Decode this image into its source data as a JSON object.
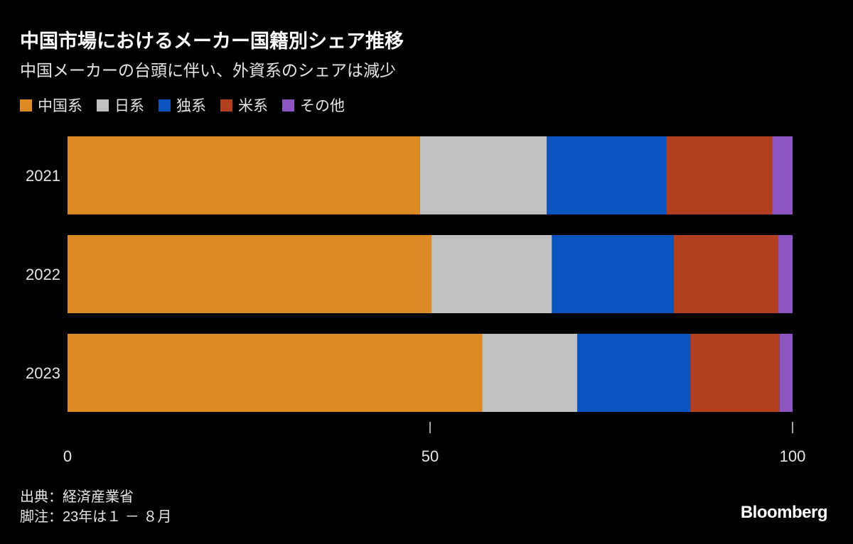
{
  "chart_data": {
    "type": "bar",
    "orientation": "horizontal",
    "stacked": true,
    "title": "中国市場におけるメーカー国籍別シェア推移",
    "subtitle": "中国メーカーの台頭に伴い、外資系のシェアは減少",
    "categories": [
      "2021",
      "2022",
      "2023"
    ],
    "series": [
      {
        "name": "中国系",
        "color": "#de8a24",
        "values": [
          48.6,
          50.2,
          57.2
        ]
      },
      {
        "name": "日系",
        "color": "#c0c0c0",
        "values": [
          17.5,
          16.6,
          13.1
        ]
      },
      {
        "name": "独系",
        "color": "#0a54c0",
        "values": [
          16.5,
          16.8,
          15.6
        ]
      },
      {
        "name": "米系",
        "color": "#b23f1e",
        "values": [
          14.6,
          14.4,
          12.3
        ]
      },
      {
        "name": "その他",
        "color": "#8e55c2",
        "values": [
          2.8,
          2.0,
          1.8
        ]
      }
    ],
    "xlim": [
      0,
      100
    ],
    "xticks": [
      "0",
      "50",
      "100"
    ],
    "legend_position": "top-left",
    "grid": false
  },
  "footer": {
    "source": "出典：経済産業省",
    "note": "脚注：23年は１ － ８月"
  },
  "logo": "Bloomberg"
}
